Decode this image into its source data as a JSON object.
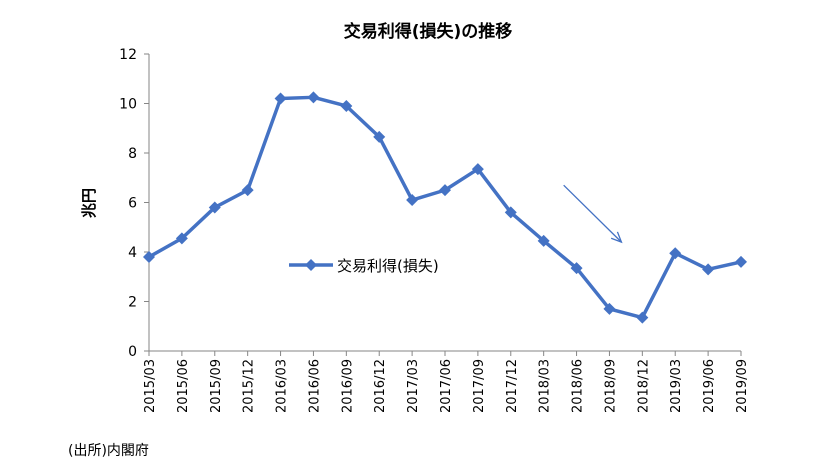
{
  "chart_data": {
    "type": "line",
    "title": "交易利得(損失)の推移",
    "ylabel": "兆円",
    "xlabel": "",
    "ylim": [
      0,
      12
    ],
    "yticks": [
      0,
      2,
      4,
      6,
      8,
      10,
      12
    ],
    "categories": [
      "2015/03",
      "2015/06",
      "2015/09",
      "2015/12",
      "2016/03",
      "2016/06",
      "2016/09",
      "2016/12",
      "2017/03",
      "2017/06",
      "2017/09",
      "2017/12",
      "2018/03",
      "2018/06",
      "2018/09",
      "2018/12",
      "2019/03",
      "2019/06",
      "2019/09"
    ],
    "series": [
      {
        "name": "交易利得(損失)",
        "color": "#4472c4",
        "marker": "diamond",
        "values": [
          3.8,
          4.55,
          5.8,
          6.5,
          10.2,
          10.25,
          9.9,
          8.65,
          6.1,
          6.5,
          7.35,
          5.6,
          4.45,
          3.35,
          1.7,
          1.35,
          3.95,
          3.3,
          3.6
        ]
      }
    ],
    "legend": "inside-center-left",
    "grid": false,
    "annotations": [
      {
        "type": "arrow",
        "from": [
          "2018/03",
          6.7
        ],
        "to": [
          "2018/09",
          4.4
        ],
        "color": "#4472c4"
      }
    ]
  },
  "source_note": "(出所)内閣府"
}
